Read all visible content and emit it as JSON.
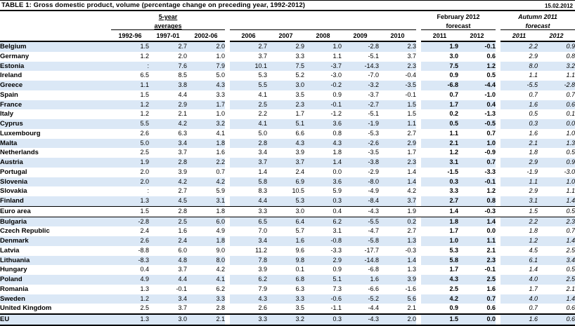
{
  "title": "TABLE 1: Gross domestic product, volume (percentage change on preceding year, 1992-2012)",
  "date": "15.02.2012",
  "header": {
    "averages_line1": "5-year",
    "averages_line2": "averages",
    "feb_line1": "February 2012",
    "feb_line2": "forecast",
    "autumn_line1": "Autumn 2011",
    "autumn_line2": "forecast",
    "columns": [
      "1992-96",
      "1997-01",
      "2002-06",
      "2006",
      "2007",
      "2008",
      "2009",
      "2010",
      "2011",
      "2012",
      "2011",
      "2012"
    ]
  },
  "colors": {
    "stripe": "#dbe8f6",
    "border": "#000000",
    "text": "#000000"
  },
  "table": {
    "rows": [
      {
        "name": "Belgium",
        "values": [
          "1.5",
          "2.7",
          "2.0",
          "2.7",
          "2.9",
          "1.0",
          "-2.8",
          "2.3",
          "1.9",
          "-0.1",
          "2.2",
          "0.9"
        ]
      },
      {
        "name": "Germany",
        "values": [
          "1.2",
          "2.0",
          "1.0",
          "3.7",
          "3.3",
          "1.1",
          "-5.1",
          "3.7",
          "3.0",
          "0.6",
          "2.9",
          "0.8"
        ]
      },
      {
        "name": "Estonia",
        "values": [
          ":",
          "7.6",
          "7.9",
          "10.1",
          "7.5",
          "-3.7",
          "-14.3",
          "2.3",
          "7.5",
          "1.2",
          "8.0",
          "3.2"
        ]
      },
      {
        "name": "Ireland",
        "values": [
          "6.5",
          "8.5",
          "5.0",
          "5.3",
          "5.2",
          "-3.0",
          "-7.0",
          "-0.4",
          "0.9",
          "0.5",
          "1.1",
          "1.1"
        ]
      },
      {
        "name": "Greece",
        "values": [
          "1.1",
          "3.8",
          "4.3",
          "5.5",
          "3.0",
          "-0.2",
          "-3.2",
          "-3.5",
          "-6.8",
          "-4.4",
          "-5.5",
          "-2.8"
        ]
      },
      {
        "name": "Spain",
        "values": [
          "1.5",
          "4.4",
          "3.3",
          "4.1",
          "3.5",
          "0.9",
          "-3.7",
          "-0.1",
          "0.7",
          "-1.0",
          "0.7",
          "0.7"
        ]
      },
      {
        "name": "France",
        "values": [
          "1.2",
          "2.9",
          "1.7",
          "2.5",
          "2.3",
          "-0.1",
          "-2.7",
          "1.5",
          "1.7",
          "0.4",
          "1.6",
          "0.6"
        ]
      },
      {
        "name": "Italy",
        "values": [
          "1.2",
          "2.1",
          "1.0",
          "2.2",
          "1.7",
          "-1.2",
          "-5.1",
          "1.5",
          "0.2",
          "-1.3",
          "0.5",
          "0.1"
        ]
      },
      {
        "name": "Cyprus",
        "values": [
          "5.5",
          "4.2",
          "3.2",
          "4.1",
          "5.1",
          "3.6",
          "-1.9",
          "1.1",
          "0.5",
          "-0.5",
          "0.3",
          "0.0"
        ]
      },
      {
        "name": "Luxembourg",
        "values": [
          "2.6",
          "6.3",
          "4.1",
          "5.0",
          "6.6",
          "0.8",
          "-5.3",
          "2.7",
          "1.1",
          "0.7",
          "1.6",
          "1.0"
        ]
      },
      {
        "name": "Malta",
        "values": [
          "5.0",
          "3.4",
          "1.8",
          "2.8",
          "4.3",
          "4.3",
          "-2.6",
          "2.9",
          "2.1",
          "1.0",
          "2.1",
          "1.3"
        ]
      },
      {
        "name": "Netherlands",
        "values": [
          "2.5",
          "3.7",
          "1.6",
          "3.4",
          "3.9",
          "1.8",
          "-3.5",
          "1.7",
          "1.2",
          "-0.9",
          "1.8",
          "0.5"
        ]
      },
      {
        "name": "Austria",
        "values": [
          "1.9",
          "2.8",
          "2.2",
          "3.7",
          "3.7",
          "1.4",
          "-3.8",
          "2.3",
          "3.1",
          "0.7",
          "2.9",
          "0.9"
        ]
      },
      {
        "name": "Portugal",
        "values": [
          "2.0",
          "3.9",
          "0.7",
          "1.4",
          "2.4",
          "0.0",
          "-2.9",
          "1.4",
          "-1.5",
          "-3.3",
          "-1.9",
          "-3.0"
        ]
      },
      {
        "name": "Slovenia",
        "values": [
          "2.0",
          "4.2",
          "4.2",
          "5.8",
          "6.9",
          "3.6",
          "-8.0",
          "1.4",
          "0.3",
          "-0.1",
          "1.1",
          "1.0"
        ]
      },
      {
        "name": "Slovakia",
        "values": [
          ":",
          "2.7",
          "5.9",
          "8.3",
          "10.5",
          "5.9",
          "-4.9",
          "4.2",
          "3.3",
          "1.2",
          "2.9",
          "1.1"
        ]
      },
      {
        "name": "Finland",
        "values": [
          "1.3",
          "4.5",
          "3.1",
          "4.4",
          "5.3",
          "0.3",
          "-8.4",
          "3.7",
          "2.7",
          "0.8",
          "3.1",
          "1.4"
        ]
      },
      {
        "name": "Euro area",
        "values": [
          "1.5",
          "2.8",
          "1.8",
          "3.3",
          "3.0",
          "0.4",
          "-4.3",
          "1.9",
          "1.4",
          "-0.3",
          "1.5",
          "0.5"
        ],
        "cls": "thin-sep"
      },
      {
        "name": "Bulgaria",
        "values": [
          "-2.8",
          "2.5",
          "6.0",
          "6.5",
          "6.4",
          "6.2",
          "-5.5",
          "0.2",
          "1.8",
          "1.4",
          "2.2",
          "2.3"
        ]
      },
      {
        "name": "Czech Republic",
        "values": [
          "2.4",
          "1.6",
          "4.9",
          "7.0",
          "5.7",
          "3.1",
          "-4.7",
          "2.7",
          "1.7",
          "0.0",
          "1.8",
          "0.7"
        ]
      },
      {
        "name": "Denmark",
        "values": [
          "2.6",
          "2.4",
          "1.8",
          "3.4",
          "1.6",
          "-0.8",
          "-5.8",
          "1.3",
          "1.0",
          "1.1",
          "1.2",
          "1.4"
        ]
      },
      {
        "name": "Latvia",
        "values": [
          "-8.8",
          "6.0",
          "9.0",
          "11.2",
          "9.6",
          "-3.3",
          "-17.7",
          "-0.3",
          "5.3",
          "2.1",
          "4.5",
          "2.5"
        ]
      },
      {
        "name": "Lithuania",
        "values": [
          "-8.3",
          "4.8",
          "8.0",
          "7.8",
          "9.8",
          "2.9",
          "-14.8",
          "1.4",
          "5.8",
          "2.3",
          "6.1",
          "3.4"
        ]
      },
      {
        "name": "Hungary",
        "values": [
          "0.4",
          "3.7",
          "4.2",
          "3.9",
          "0.1",
          "0.9",
          "-6.8",
          "1.3",
          "1.7",
          "-0.1",
          "1.4",
          "0.5"
        ]
      },
      {
        "name": "Poland",
        "values": [
          "4.9",
          "4.4",
          "4.1",
          "6.2",
          "6.8",
          "5.1",
          "1.6",
          "3.9",
          "4.3",
          "2.5",
          "4.0",
          "2.5"
        ]
      },
      {
        "name": "Romania",
        "values": [
          "1.3",
          "-0.1",
          "6.2",
          "7.9",
          "6.3",
          "7.3",
          "-6.6",
          "-1.6",
          "2.5",
          "1.6",
          "1.7",
          "2.1"
        ]
      },
      {
        "name": "Sweden",
        "values": [
          "1.2",
          "3.4",
          "3.3",
          "4.3",
          "3.3",
          "-0.6",
          "-5.2",
          "5.6",
          "4.2",
          "0.7",
          "4.0",
          "1.4"
        ]
      },
      {
        "name": "United Kingdom",
        "values": [
          "2.5",
          "3.7",
          "2.8",
          "2.6",
          "3.5",
          "-1.1",
          "-4.4",
          "2.1",
          "0.9",
          "0.6",
          "0.7",
          "0.6"
        ]
      },
      {
        "name": "EU",
        "values": [
          "1.3",
          "3.0",
          "2.1",
          "3.3",
          "3.2",
          "0.3",
          "-4.3",
          "2.0",
          "1.5",
          "0.0",
          "1.6",
          "0.6"
        ],
        "cls": "thick-sep"
      }
    ]
  }
}
